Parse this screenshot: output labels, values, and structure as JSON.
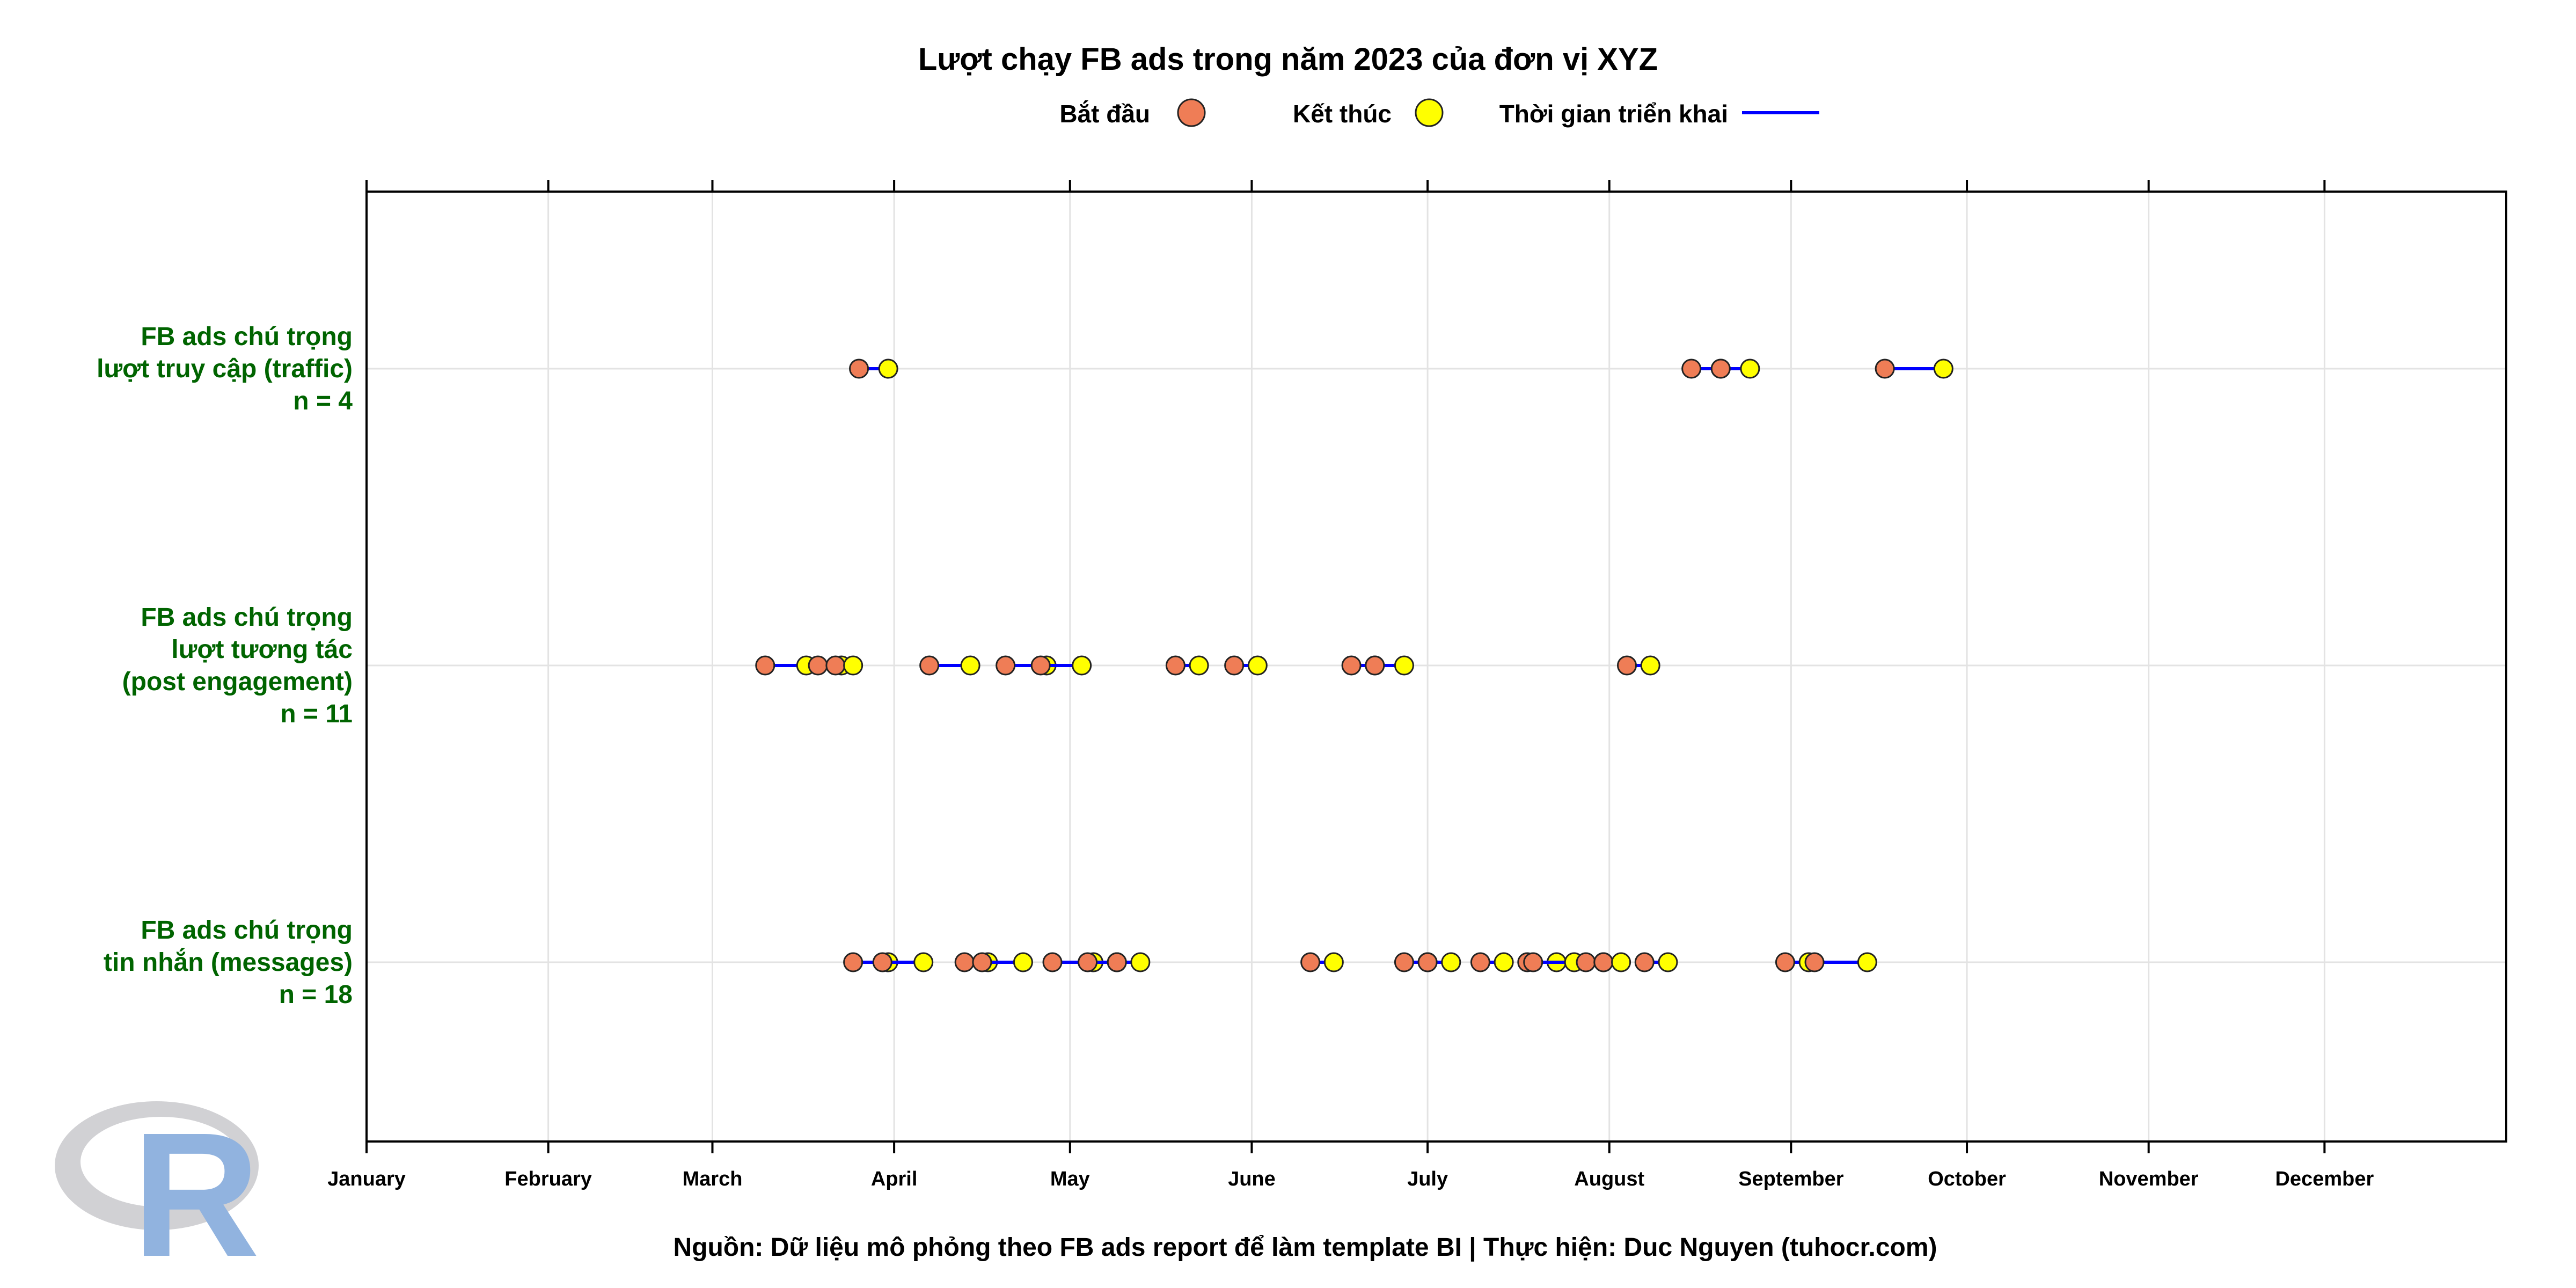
{
  "chart_data": {
    "type": "dumbbell",
    "title": "Lượt chạy FB ads trong năm 2023 của đơn vị XYZ",
    "legend": {
      "position": "top",
      "start_label": "Bắt đầu",
      "end_label": "Kết thúc",
      "duration_label": "Thời gian triển khai"
    },
    "caption": "Nguồn: Dữ liệu mô phỏng theo FB ads report để làm template BI | Thực hiện: Duc Nguyen (tuhocr.com)",
    "colors": {
      "start": "#ef7d56",
      "end": "#ffff00",
      "duration": "#0000ff",
      "category_text": "#006400"
    },
    "grid": true,
    "x_axis": {
      "type": "date",
      "range": [
        "2023-01-01",
        "2023-12-31"
      ],
      "ticks": [
        {
          "date": "2023-01-01",
          "label": "January"
        },
        {
          "date": "2023-02-01",
          "label": "February"
        },
        {
          "date": "2023-03-01",
          "label": "March"
        },
        {
          "date": "2023-04-01",
          "label": "April"
        },
        {
          "date": "2023-05-01",
          "label": "May"
        },
        {
          "date": "2023-06-01",
          "label": "June"
        },
        {
          "date": "2023-07-01",
          "label": "July"
        },
        {
          "date": "2023-08-01",
          "label": "August"
        },
        {
          "date": "2023-09-01",
          "label": "September"
        },
        {
          "date": "2023-10-01",
          "label": "October"
        },
        {
          "date": "2023-11-01",
          "label": "November"
        },
        {
          "date": "2023-12-01",
          "label": "December"
        }
      ]
    },
    "categories": [
      {
        "label_lines": [
          "FB ads chú trọng",
          "lượt truy cập (traffic)",
          "n = 4"
        ],
        "runs": [
          {
            "start": "2023-03-26",
            "end": "2023-03-31"
          },
          {
            "start": "2023-08-15",
            "end": "2023-08-20"
          },
          {
            "start": "2023-08-20",
            "end": "2023-08-25"
          },
          {
            "start": "2023-09-17",
            "end": "2023-09-27"
          }
        ]
      },
      {
        "label_lines": [
          "FB ads chú trọng",
          "lượt tương tác",
          "(post engagement)",
          "n = 11"
        ],
        "runs": [
          {
            "start": "2023-03-10",
            "end": "2023-03-17"
          },
          {
            "start": "2023-03-19",
            "end": "2023-03-23"
          },
          {
            "start": "2023-03-22",
            "end": "2023-03-25"
          },
          {
            "start": "2023-04-07",
            "end": "2023-04-14"
          },
          {
            "start": "2023-04-20",
            "end": "2023-04-27"
          },
          {
            "start": "2023-04-26",
            "end": "2023-05-03"
          },
          {
            "start": "2023-05-19",
            "end": "2023-05-23"
          },
          {
            "start": "2023-05-29",
            "end": "2023-06-02"
          },
          {
            "start": "2023-06-18",
            "end": "2023-06-22"
          },
          {
            "start": "2023-06-22",
            "end": "2023-06-27"
          },
          {
            "start": "2023-08-04",
            "end": "2023-08-08"
          }
        ]
      },
      {
        "label_lines": [
          "FB ads chú trọng",
          "tin nhắn (messages)",
          "n = 18"
        ],
        "runs": [
          {
            "start": "2023-03-25",
            "end": "2023-03-31"
          },
          {
            "start": "2023-03-30",
            "end": "2023-04-06"
          },
          {
            "start": "2023-04-13",
            "end": "2023-04-17"
          },
          {
            "start": "2023-04-16",
            "end": "2023-04-23"
          },
          {
            "start": "2023-04-28",
            "end": "2023-05-05"
          },
          {
            "start": "2023-05-04",
            "end": "2023-05-09"
          },
          {
            "start": "2023-05-09",
            "end": "2023-05-13"
          },
          {
            "start": "2023-06-11",
            "end": "2023-06-15"
          },
          {
            "start": "2023-06-27",
            "end": "2023-07-01"
          },
          {
            "start": "2023-07-01",
            "end": "2023-07-05"
          },
          {
            "start": "2023-07-10",
            "end": "2023-07-14"
          },
          {
            "start": "2023-07-18",
            "end": "2023-07-23"
          },
          {
            "start": "2023-07-19",
            "end": "2023-07-26"
          },
          {
            "start": "2023-07-28",
            "end": "2023-07-31"
          },
          {
            "start": "2023-07-31",
            "end": "2023-08-03"
          },
          {
            "start": "2023-08-07",
            "end": "2023-08-11"
          },
          {
            "start": "2023-08-31",
            "end": "2023-09-04"
          },
          {
            "start": "2023-09-05",
            "end": "2023-09-14"
          }
        ]
      }
    ]
  }
}
